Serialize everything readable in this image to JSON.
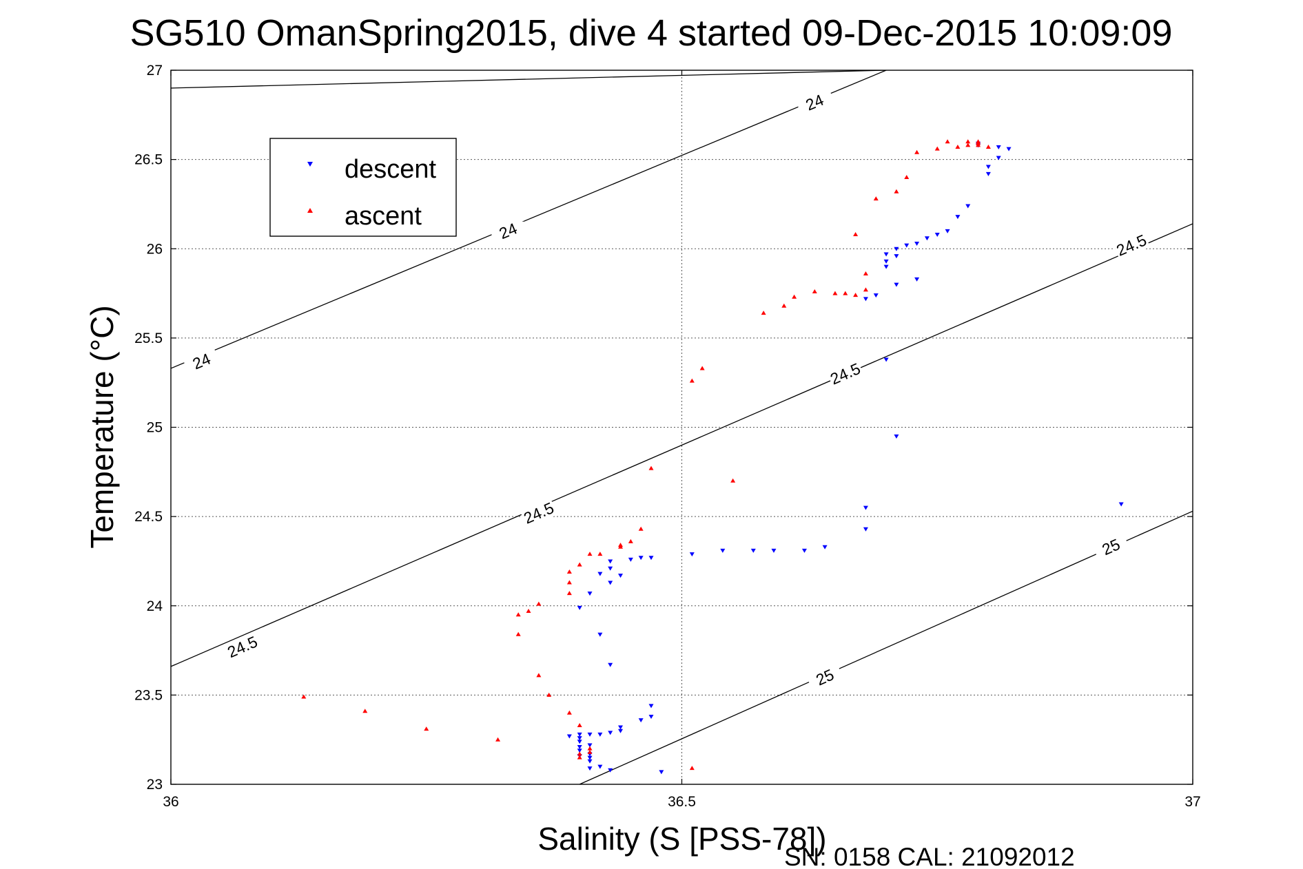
{
  "chart_data": {
    "type": "scatter",
    "title": "SG510 OmanSpring2015, dive 4 started 09-Dec-2015 10:09:09",
    "xlabel": "Salinity (S [PSS-78])",
    "ylabel": "Temperature (°C)",
    "xlim": [
      36,
      37
    ],
    "ylim": [
      23,
      27
    ],
    "x_ticks": [
      "36",
      "36.5",
      "37"
    ],
    "y_ticks": [
      "23",
      "23.5",
      "24",
      "24.5",
      "25",
      "25.5",
      "26",
      "26.5",
      "27"
    ],
    "grid": true,
    "legend_position": "top-left",
    "footer": "SN: 0158  CAL: 21092012",
    "contours": [
      {
        "level": "24",
        "color": "#000000",
        "points": [
          [
            36.0,
            26.9
          ],
          [
            36.7,
            27.0
          ]
        ],
        "labels": [
          [
            36.33,
            26.1
          ],
          [
            36.63,
            26.82
          ]
        ]
      },
      {
        "level": "24",
        "color": "#000000",
        "points": [
          [
            36.0,
            25.33
          ],
          [
            36.7,
            27.0
          ]
        ],
        "labels": [
          [
            36.03,
            25.37
          ],
          [
            36.33,
            26.1
          ],
          [
            36.63,
            26.82
          ]
        ]
      },
      {
        "level": "24.5",
        "color": "#000000",
        "points": [
          [
            36.0,
            23.66
          ],
          [
            37.0,
            26.14
          ]
        ],
        "labels": [
          [
            36.07,
            23.77
          ],
          [
            36.36,
            24.52
          ],
          [
            36.66,
            25.3
          ],
          [
            36.94,
            26.02
          ]
        ]
      },
      {
        "level": "25",
        "color": "#000000",
        "points": [
          [
            36.4,
            23.0
          ],
          [
            37.0,
            24.53
          ]
        ],
        "labels": [
          [
            36.64,
            23.6
          ],
          [
            36.92,
            24.33
          ]
        ]
      }
    ],
    "series": [
      {
        "name": "descent",
        "color": "#0000ff",
        "marker": "triangle-down",
        "points": [
          [
            36.93,
            24.57
          ],
          [
            36.68,
            24.55
          ],
          [
            36.68,
            24.43
          ],
          [
            36.64,
            24.33
          ],
          [
            36.62,
            24.31
          ],
          [
            36.59,
            24.31
          ],
          [
            36.57,
            24.31
          ],
          [
            36.54,
            24.31
          ],
          [
            36.51,
            24.29
          ],
          [
            36.47,
            24.27
          ],
          [
            36.46,
            24.27
          ],
          [
            36.45,
            24.26
          ],
          [
            36.43,
            24.25
          ],
          [
            36.43,
            24.21
          ],
          [
            36.44,
            24.17
          ],
          [
            36.42,
            24.18
          ],
          [
            36.43,
            24.13
          ],
          [
            36.41,
            24.07
          ],
          [
            36.42,
            23.84
          ],
          [
            36.43,
            23.67
          ],
          [
            36.4,
            23.99
          ],
          [
            36.47,
            23.44
          ],
          [
            36.47,
            23.38
          ],
          [
            36.46,
            23.36
          ],
          [
            36.44,
            23.32
          ],
          [
            36.44,
            23.3
          ],
          [
            36.43,
            23.29
          ],
          [
            36.42,
            23.28
          ],
          [
            36.41,
            23.28
          ],
          [
            36.4,
            23.28
          ],
          [
            36.39,
            23.27
          ],
          [
            36.4,
            23.26
          ],
          [
            36.4,
            23.24
          ],
          [
            36.41,
            23.22
          ],
          [
            36.4,
            23.21
          ],
          [
            36.4,
            23.19
          ],
          [
            36.41,
            23.17
          ],
          [
            36.41,
            23.15
          ],
          [
            36.4,
            23.16
          ],
          [
            36.41,
            23.13
          ],
          [
            36.42,
            23.1
          ],
          [
            36.41,
            23.09
          ],
          [
            36.43,
            23.08
          ],
          [
            36.48,
            23.07
          ],
          [
            36.7,
            25.38
          ],
          [
            36.71,
            24.95
          ],
          [
            36.68,
            25.72
          ],
          [
            36.69,
            25.74
          ],
          [
            36.71,
            25.8
          ],
          [
            36.73,
            25.83
          ],
          [
            36.7,
            25.9
          ],
          [
            36.7,
            25.93
          ],
          [
            36.71,
            25.96
          ],
          [
            36.7,
            25.97
          ],
          [
            36.71,
            26.0
          ],
          [
            36.72,
            26.02
          ],
          [
            36.73,
            26.03
          ],
          [
            36.74,
            26.06
          ],
          [
            36.75,
            26.08
          ],
          [
            36.76,
            26.1
          ],
          [
            36.77,
            26.18
          ],
          [
            36.78,
            26.24
          ],
          [
            36.8,
            26.42
          ],
          [
            36.8,
            26.46
          ],
          [
            36.81,
            26.51
          ],
          [
            36.82,
            26.56
          ],
          [
            36.81,
            26.57
          ],
          [
            36.79,
            26.58
          ],
          [
            36.79,
            26.59
          ]
        ]
      },
      {
        "name": "ascent",
        "color": "#ff0000",
        "marker": "triangle-up",
        "points": [
          [
            36.13,
            23.49
          ],
          [
            36.19,
            23.41
          ],
          [
            36.25,
            23.31
          ],
          [
            36.32,
            23.25
          ],
          [
            36.36,
            23.61
          ],
          [
            36.37,
            23.5
          ],
          [
            36.39,
            23.4
          ],
          [
            36.4,
            23.33
          ],
          [
            36.4,
            23.15
          ],
          [
            36.41,
            23.2
          ],
          [
            36.4,
            23.17
          ],
          [
            36.41,
            23.18
          ],
          [
            36.34,
            23.84
          ],
          [
            36.34,
            23.95
          ],
          [
            36.35,
            23.97
          ],
          [
            36.36,
            24.01
          ],
          [
            36.39,
            24.07
          ],
          [
            36.39,
            24.13
          ],
          [
            36.39,
            24.19
          ],
          [
            36.4,
            24.23
          ],
          [
            36.41,
            24.29
          ],
          [
            36.42,
            24.29
          ],
          [
            36.44,
            24.33
          ],
          [
            36.44,
            24.34
          ],
          [
            36.45,
            24.36
          ],
          [
            36.46,
            24.43
          ],
          [
            36.47,
            24.77
          ],
          [
            36.51,
            25.26
          ],
          [
            36.52,
            25.33
          ],
          [
            36.55,
            24.7
          ],
          [
            36.51,
            23.09
          ],
          [
            36.58,
            25.64
          ],
          [
            36.6,
            25.68
          ],
          [
            36.61,
            25.73
          ],
          [
            36.63,
            25.76
          ],
          [
            36.65,
            25.75
          ],
          [
            36.66,
            25.75
          ],
          [
            36.67,
            25.74
          ],
          [
            36.68,
            25.77
          ],
          [
            36.68,
            25.86
          ],
          [
            36.67,
            26.08
          ],
          [
            36.69,
            26.28
          ],
          [
            36.71,
            26.32
          ],
          [
            36.72,
            26.4
          ],
          [
            36.73,
            26.54
          ],
          [
            36.75,
            26.56
          ],
          [
            36.77,
            26.57
          ],
          [
            36.78,
            26.58
          ],
          [
            36.79,
            26.59
          ],
          [
            36.79,
            26.6
          ],
          [
            36.78,
            26.6
          ],
          [
            36.79,
            26.58
          ],
          [
            36.8,
            26.57
          ],
          [
            36.76,
            26.6
          ]
        ]
      }
    ]
  }
}
